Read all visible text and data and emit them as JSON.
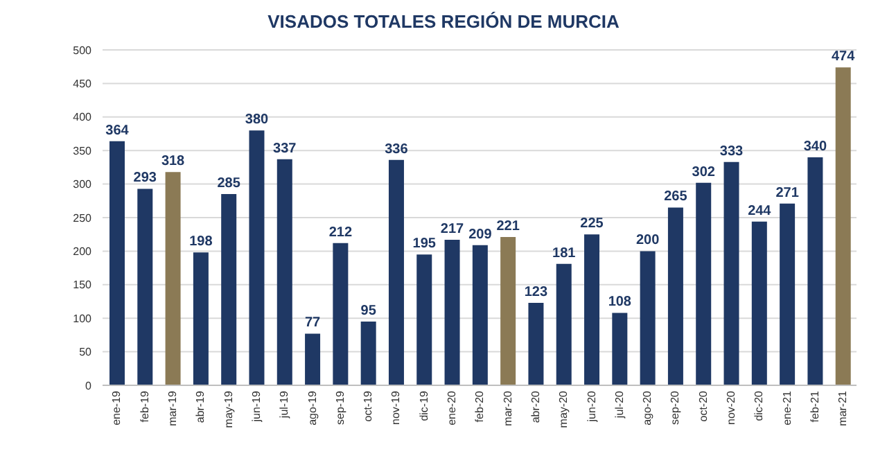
{
  "chart_data": {
    "type": "bar",
    "title": "VISADOS TOTALES REGIÓN DE MURCIA",
    "categories": [
      "ene-19",
      "feb-19",
      "mar-19",
      "abr-19",
      "may-19",
      "jun-19",
      "jul-19",
      "ago-19",
      "sep-19",
      "oct-19",
      "nov-19",
      "dic-19",
      "ene-20",
      "feb-20",
      "mar-20",
      "abr-20",
      "may-20",
      "jun-20",
      "jul-20",
      "ago-20",
      "sep-20",
      "oct-20",
      "nov-20",
      "dic-20",
      "ene-21",
      "feb-21",
      "mar-21"
    ],
    "values": [
      364,
      293,
      318,
      198,
      285,
      380,
      337,
      77,
      212,
      95,
      336,
      195,
      217,
      209,
      221,
      123,
      181,
      225,
      108,
      200,
      265,
      302,
      333,
      244,
      271,
      340,
      474
    ],
    "colors": [
      "#1f3864",
      "#1f3864",
      "#8b7a55",
      "#1f3864",
      "#1f3864",
      "#1f3864",
      "#1f3864",
      "#1f3864",
      "#1f3864",
      "#1f3864",
      "#1f3864",
      "#1f3864",
      "#1f3864",
      "#1f3864",
      "#8b7a55",
      "#1f3864",
      "#1f3864",
      "#1f3864",
      "#1f3864",
      "#1f3864",
      "#1f3864",
      "#1f3864",
      "#1f3864",
      "#1f3864",
      "#1f3864",
      "#1f3864",
      "#8b7a55"
    ],
    "ylim": [
      0,
      500
    ],
    "yticks": [
      0,
      50,
      100,
      150,
      200,
      250,
      300,
      350,
      400,
      450,
      500
    ],
    "grid": "y",
    "data_labels": true
  }
}
